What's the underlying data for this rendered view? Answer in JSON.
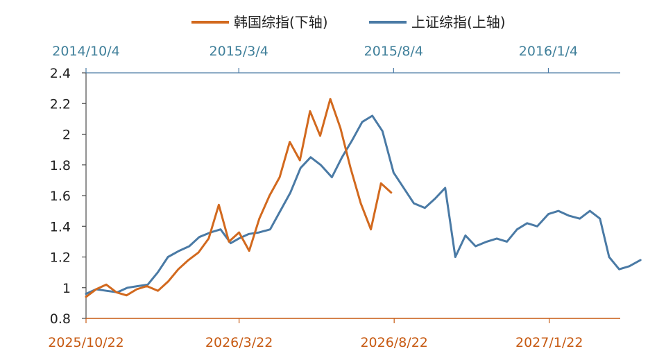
{
  "chart_data": {
    "type": "line",
    "title": "",
    "legend": {
      "placement": "top-center",
      "entries": [
        {
          "label": "韩国综指(下轴)",
          "color": "#d2691e"
        },
        {
          "label": "上证综指(上轴)",
          "color": "#4a7aa5"
        }
      ]
    },
    "y_axis": {
      "ylim": [
        0.8,
        2.4
      ],
      "ticks": [
        "0.8",
        "1",
        "1.2",
        "1.4",
        "1.6",
        "1.8",
        "2",
        "2.2",
        "2.4"
      ],
      "tick_values": [
        0.8,
        1.0,
        1.2,
        1.4,
        1.6,
        1.8,
        2.0,
        2.2,
        2.4
      ]
    },
    "x_top": {
      "ticks": [
        "2014/10/4",
        "2015/3/4",
        "2015/8/4",
        "2016/1/4"
      ],
      "tick_dates": [
        "2014-10-04",
        "2015-03-04",
        "2015-08-04",
        "2016-01-04"
      ],
      "range": [
        "2014-10-04",
        "2016-03-15"
      ]
    },
    "x_bottom": {
      "ticks": [
        "2025/10/22",
        "2026/3/22",
        "2026/8/22",
        "2027/1/22"
      ],
      "tick_dates": [
        "2025-10-22",
        "2026-03-22",
        "2026-08-22",
        "2027-01-22"
      ],
      "range": [
        "2025-10-22",
        "2027-04-02"
      ]
    },
    "grid": false,
    "series": [
      {
        "name": "上证综指(上轴)",
        "axis": "top",
        "color": "#4a7aa5",
        "points": [
          [
            "2014-10-04",
            0.96
          ],
          [
            "2014-10-14",
            0.99
          ],
          [
            "2014-10-24",
            0.98
          ],
          [
            "2014-11-04",
            0.97
          ],
          [
            "2014-11-14",
            1.0
          ],
          [
            "2014-11-24",
            1.01
          ],
          [
            "2014-12-04",
            1.02
          ],
          [
            "2014-12-14",
            1.1
          ],
          [
            "2014-12-24",
            1.2
          ],
          [
            "2015-01-04",
            1.24
          ],
          [
            "2015-01-14",
            1.27
          ],
          [
            "2015-01-24",
            1.33
          ],
          [
            "2015-02-04",
            1.36
          ],
          [
            "2015-02-14",
            1.38
          ],
          [
            "2015-02-24",
            1.29
          ],
          [
            "2015-03-04",
            1.32
          ],
          [
            "2015-03-14",
            1.35
          ],
          [
            "2015-03-24",
            1.36
          ],
          [
            "2015-04-04",
            1.38
          ],
          [
            "2015-04-14",
            1.5
          ],
          [
            "2015-04-24",
            1.62
          ],
          [
            "2015-05-04",
            1.78
          ],
          [
            "2015-05-14",
            1.85
          ],
          [
            "2015-05-24",
            1.8
          ],
          [
            "2015-06-04",
            1.72
          ],
          [
            "2015-06-14",
            1.85
          ],
          [
            "2015-06-24",
            1.96
          ],
          [
            "2015-07-04",
            2.08
          ],
          [
            "2015-07-14",
            2.12
          ],
          [
            "2015-07-24",
            2.02
          ],
          [
            "2015-08-04",
            1.75
          ],
          [
            "2015-08-14",
            1.65
          ],
          [
            "2015-08-24",
            1.55
          ],
          [
            "2015-09-04",
            1.52
          ],
          [
            "2015-09-14",
            1.58
          ],
          [
            "2015-09-24",
            1.65
          ],
          [
            "2015-10-04",
            1.2
          ],
          [
            "2015-10-14",
            1.34
          ],
          [
            "2015-10-24",
            1.27
          ],
          [
            "2015-11-04",
            1.3
          ],
          [
            "2015-11-14",
            1.32
          ],
          [
            "2015-11-24",
            1.3
          ],
          [
            "2015-12-04",
            1.38
          ],
          [
            "2015-12-14",
            1.42
          ],
          [
            "2015-12-24",
            1.4
          ],
          [
            "2016-01-04",
            1.48
          ],
          [
            "2016-01-14",
            1.5
          ],
          [
            "2016-01-24",
            1.47
          ],
          [
            "2016-02-04",
            1.45
          ],
          [
            "2016-02-14",
            1.5
          ],
          [
            "2016-02-24",
            1.45
          ],
          [
            "2016-03-04",
            1.2
          ],
          [
            "2016-03-14",
            1.12
          ],
          [
            "2016-03-24",
            1.14
          ],
          [
            "2016-04-04",
            1.18
          ]
        ]
      },
      {
        "name": "韩国综指(下轴)",
        "axis": "bottom",
        "color": "#d2691e",
        "points": [
          [
            "2025-10-22",
            0.94
          ],
          [
            "2025-11-01",
            0.99
          ],
          [
            "2025-11-11",
            1.02
          ],
          [
            "2025-11-21",
            0.97
          ],
          [
            "2025-12-01",
            0.95
          ],
          [
            "2025-12-11",
            0.99
          ],
          [
            "2025-12-21",
            1.01
          ],
          [
            "2026-01-01",
            0.98
          ],
          [
            "2026-01-11",
            1.04
          ],
          [
            "2026-01-21",
            1.12
          ],
          [
            "2026-01-31",
            1.18
          ],
          [
            "2026-02-10",
            1.23
          ],
          [
            "2026-02-20",
            1.32
          ],
          [
            "2026-03-02",
            1.54
          ],
          [
            "2026-03-12",
            1.3
          ],
          [
            "2026-03-22",
            1.36
          ],
          [
            "2026-04-01",
            1.24
          ],
          [
            "2026-04-11",
            1.45
          ],
          [
            "2026-04-21",
            1.6
          ],
          [
            "2026-05-01",
            1.72
          ],
          [
            "2026-05-11",
            1.95
          ],
          [
            "2026-05-21",
            1.83
          ],
          [
            "2026-05-31",
            2.15
          ],
          [
            "2026-06-10",
            1.99
          ],
          [
            "2026-06-20",
            2.23
          ],
          [
            "2026-06-30",
            2.04
          ],
          [
            "2026-07-10",
            1.78
          ],
          [
            "2026-07-20",
            1.55
          ],
          [
            "2026-07-30",
            1.38
          ],
          [
            "2026-08-09",
            1.68
          ],
          [
            "2026-08-19",
            1.62
          ]
        ]
      }
    ]
  }
}
